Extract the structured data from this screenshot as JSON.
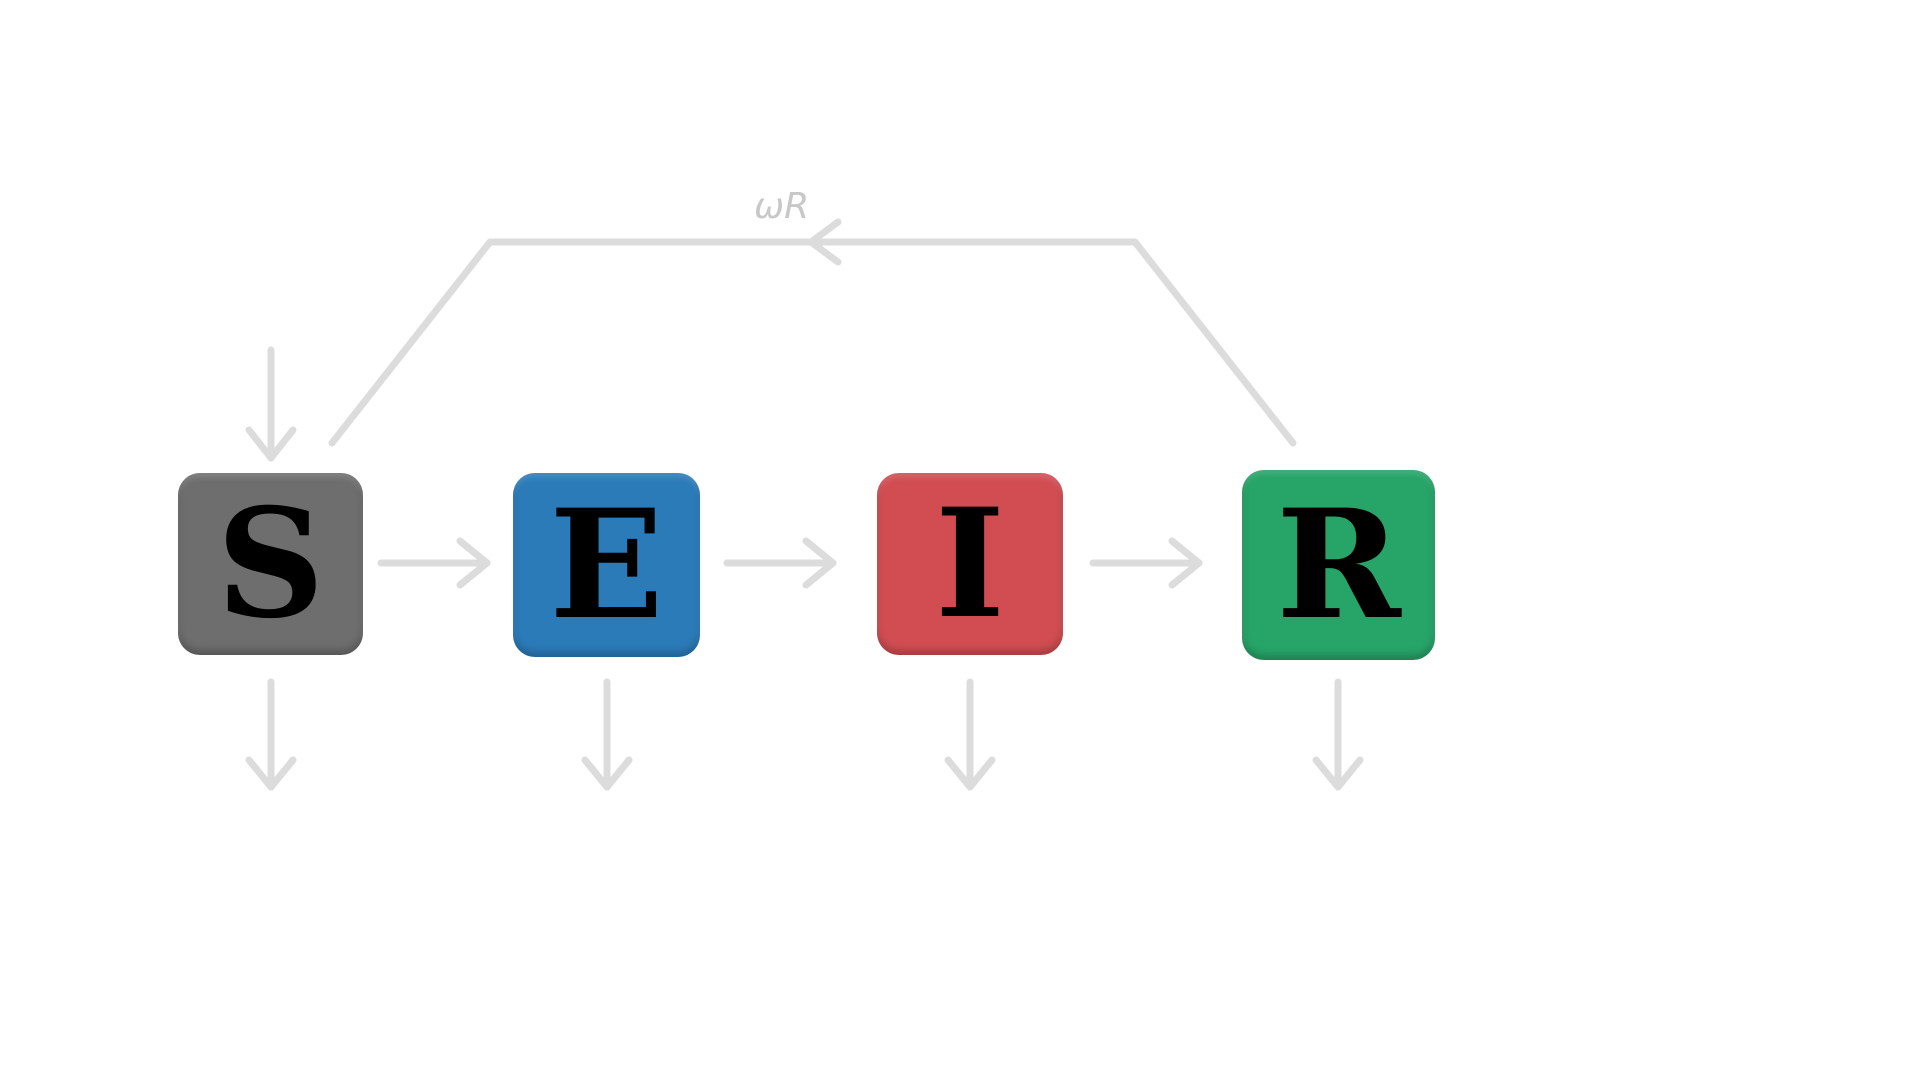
{
  "diagram": {
    "compartments": [
      {
        "id": "s",
        "letter": "S",
        "color": "#6e6e6e"
      },
      {
        "id": "e",
        "letter": "E",
        "color": "#2b7bb9"
      },
      {
        "id": "i",
        "letter": "I",
        "color": "#d14d52"
      },
      {
        "id": "r",
        "letter": "R",
        "color": "#27a468"
      }
    ],
    "transitions": [
      {
        "from": "S",
        "to": "E"
      },
      {
        "from": "E",
        "to": "I"
      },
      {
        "from": "I",
        "to": "R"
      },
      {
        "from": "R",
        "to": "S",
        "label": "ωR"
      }
    ],
    "inflows": [
      "S"
    ],
    "outflows": [
      "S",
      "E",
      "I",
      "R"
    ],
    "arrow_color": "#dcdcdc",
    "label_color": "#c8c8c8"
  }
}
